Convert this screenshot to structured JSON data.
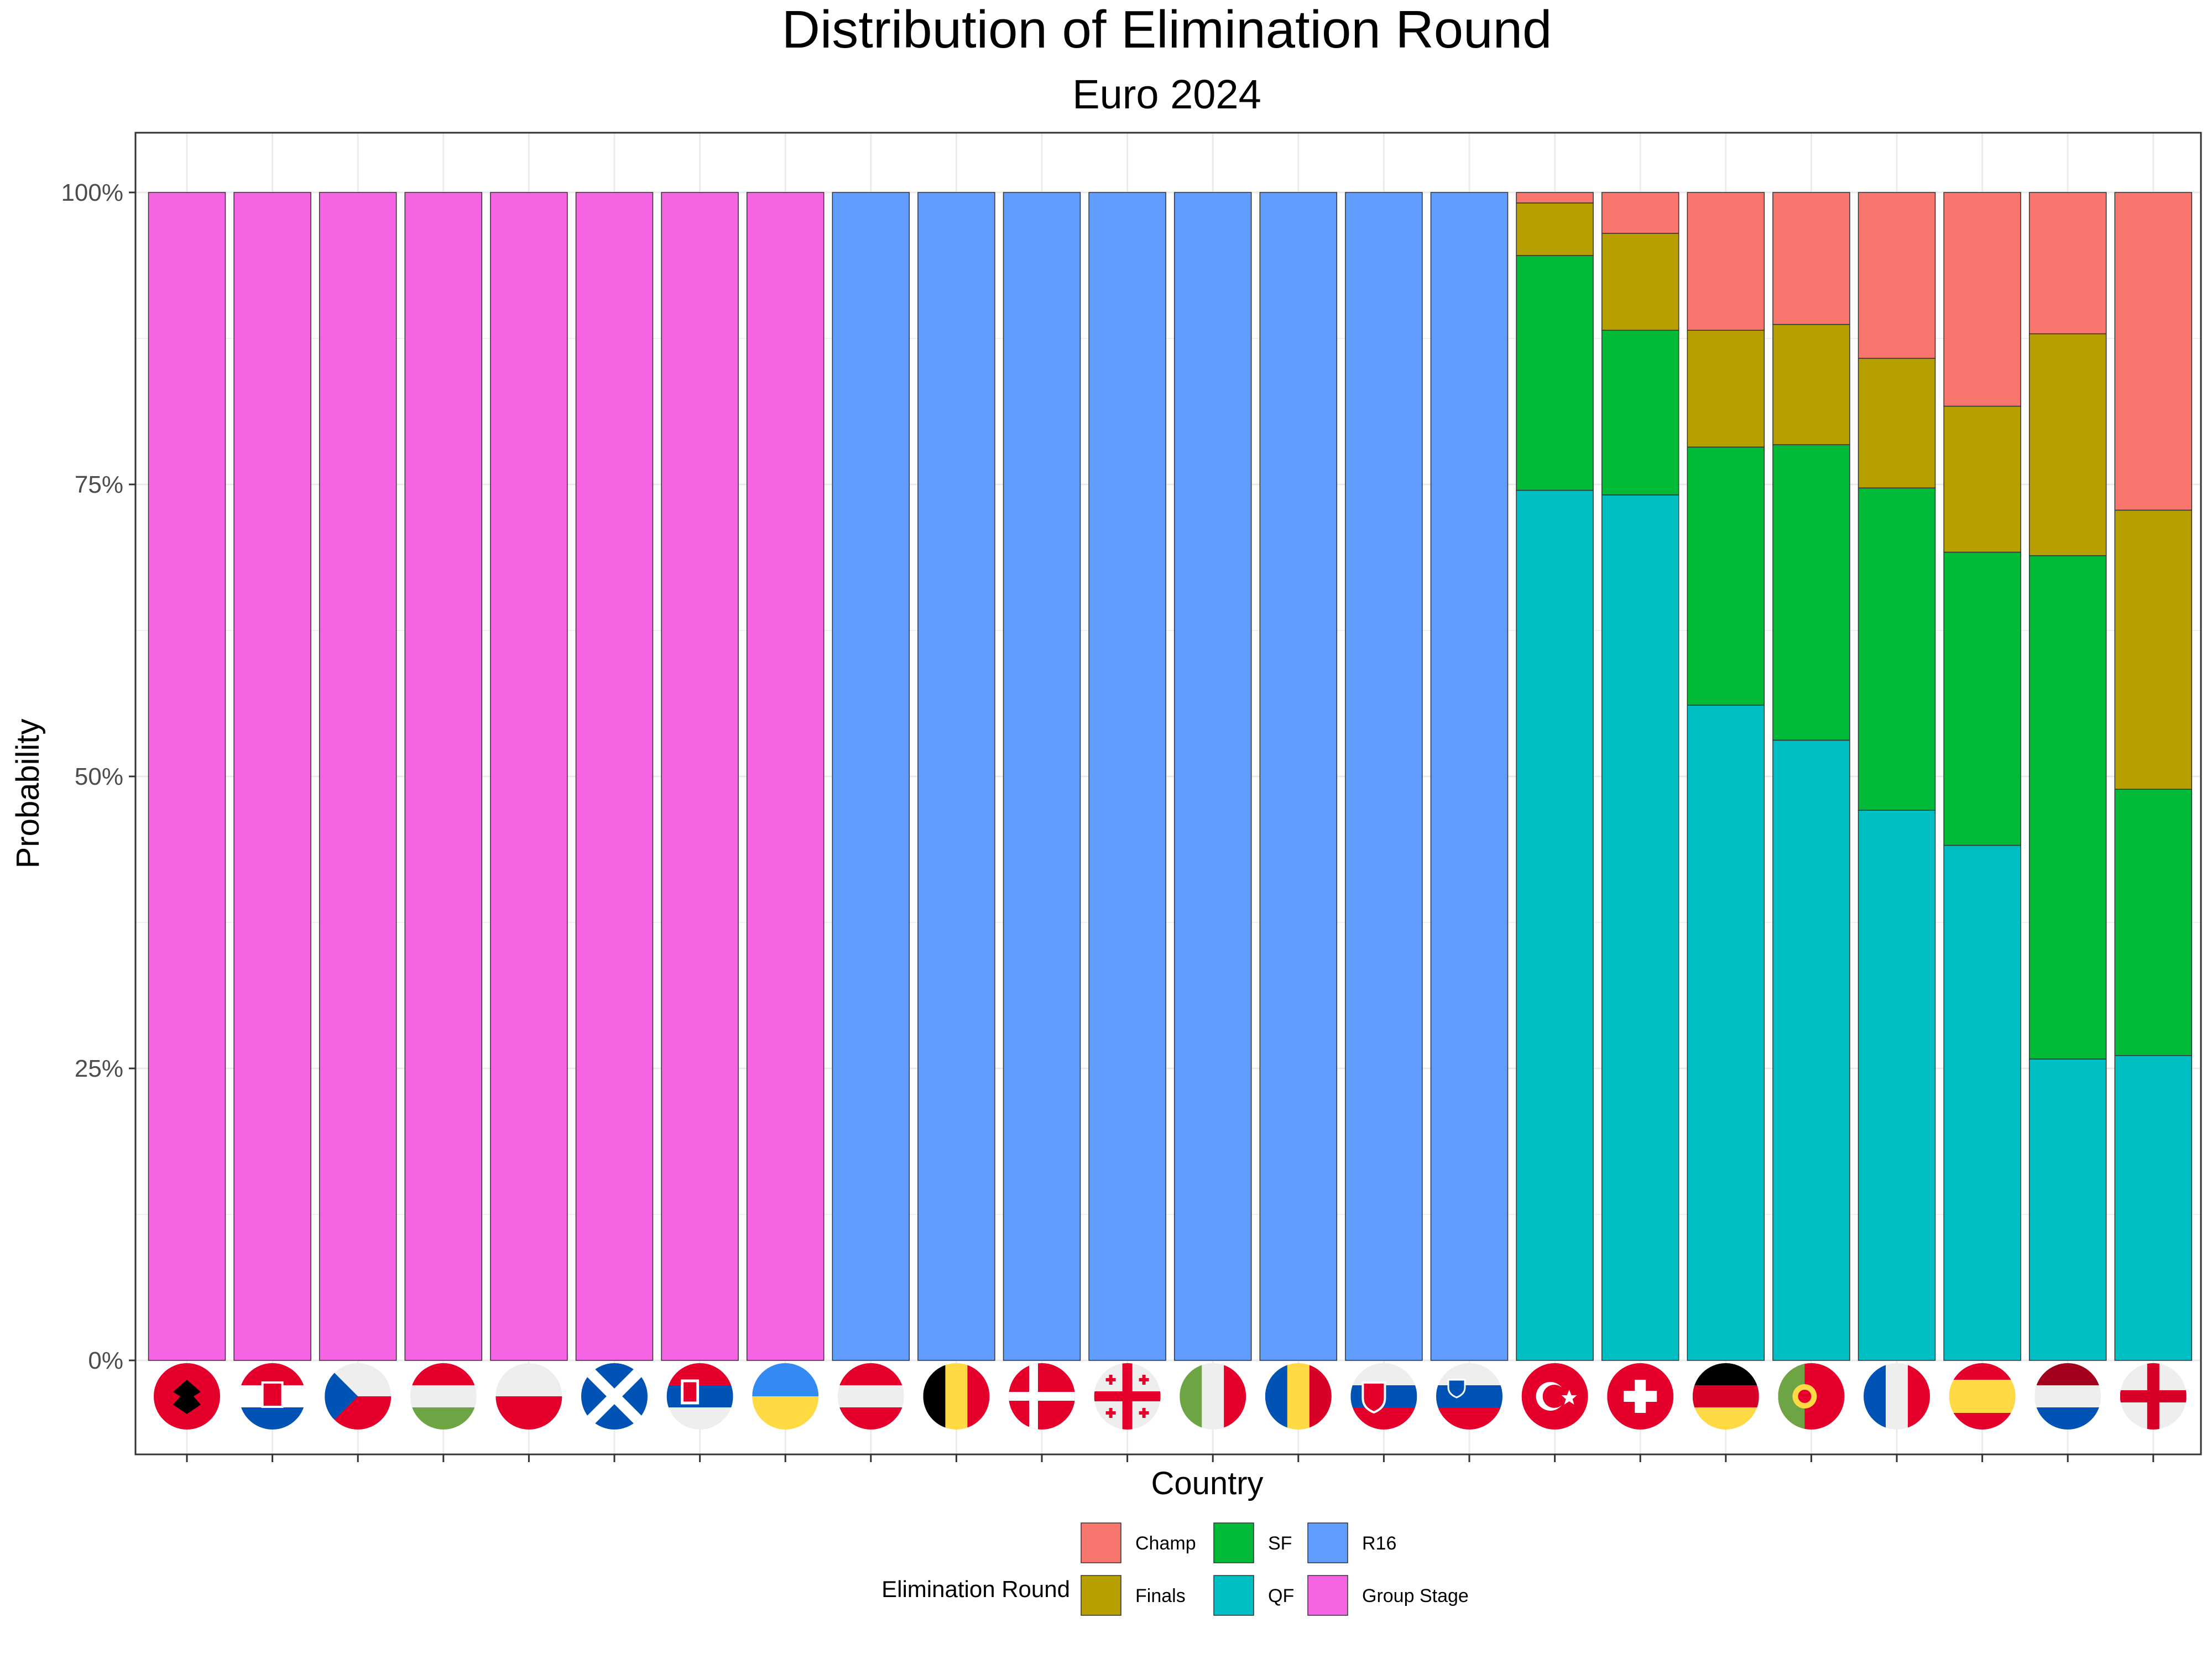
{
  "chart_data": {
    "type": "bar",
    "title": "Distribution of Elimination Round",
    "subtitle": "Euro 2024",
    "xlabel": "Country",
    "ylabel": "Probability",
    "ylim": [
      0,
      1
    ],
    "y_ticks": [
      "0%",
      "25%",
      "50%",
      "75%",
      "100%"
    ],
    "grid": true,
    "stacked": true,
    "categories": [
      "Albania",
      "Croatia",
      "Czechia",
      "Hungary",
      "Poland",
      "Scotland",
      "Serbia",
      "Ukraine",
      "Austria",
      "Belgium",
      "Denmark",
      "Georgia",
      "Italy",
      "Romania",
      "Slovakia",
      "Slovenia",
      "Turkey",
      "Switzerland",
      "Germany",
      "Portugal",
      "France",
      "Spain",
      "Netherlands",
      "England"
    ],
    "series": [
      {
        "name": "QF",
        "color": "#00BFC4",
        "values": [
          0,
          0,
          0,
          0,
          0,
          0,
          0,
          0,
          0,
          0,
          0,
          0,
          0,
          0,
          0,
          0,
          0.745,
          0.741,
          0.561,
          0.531,
          0.471,
          0.441,
          0.258,
          0.261
        ]
      },
      {
        "name": "SF",
        "color": "#00BA38",
        "values": [
          0,
          0,
          0,
          0,
          0,
          0,
          0,
          0,
          0,
          0,
          0,
          0,
          0,
          0,
          0,
          0,
          0.201,
          0.141,
          0.221,
          0.253,
          0.276,
          0.251,
          0.431,
          0.228
        ]
      },
      {
        "name": "Finals",
        "color": "#B79F00",
        "values": [
          0,
          0,
          0,
          0,
          0,
          0,
          0,
          0,
          0,
          0,
          0,
          0,
          0,
          0,
          0,
          0,
          0.045,
          0.083,
          0.1,
          0.103,
          0.111,
          0.125,
          0.19,
          0.239
        ]
      },
      {
        "name": "Champ",
        "color": "#F8766D",
        "values": [
          0,
          0,
          0,
          0,
          0,
          0,
          0,
          0,
          0,
          0,
          0,
          0,
          0,
          0,
          0,
          0,
          0.009,
          0.035,
          0.118,
          0.113,
          0.142,
          0.183,
          0.121,
          0.272
        ]
      },
      {
        "name": "R16",
        "color": "#619CFF",
        "values": [
          0,
          0,
          0,
          0,
          0,
          0,
          0,
          0,
          1,
          1,
          1,
          1,
          1,
          1,
          1,
          1,
          0,
          0,
          0,
          0,
          0,
          0,
          0,
          0
        ]
      },
      {
        "name": "Group Stage",
        "color": "#F564E3",
        "values": [
          1,
          1,
          1,
          1,
          1,
          1,
          1,
          1,
          0,
          0,
          0,
          0,
          0,
          0,
          0,
          0,
          0,
          0,
          0,
          0,
          0,
          0,
          0,
          0
        ]
      }
    ],
    "legend": {
      "title": "Elimination Round",
      "position": "bottom",
      "items": [
        {
          "label": "Champ",
          "color": "#F8766D"
        },
        {
          "label": "Finals",
          "color": "#B79F00"
        },
        {
          "label": "SF",
          "color": "#00BA38"
        },
        {
          "label": "QF",
          "color": "#00BFC4"
        },
        {
          "label": "R16",
          "color": "#619CFF"
        },
        {
          "label": "Group Stage",
          "color": "#F564E3"
        }
      ]
    },
    "flag_icons": [
      "albania-flag-icon",
      "croatia-flag-icon",
      "czechia-flag-icon",
      "hungary-flag-icon",
      "poland-flag-icon",
      "scotland-flag-icon",
      "serbia-flag-icon",
      "ukraine-flag-icon",
      "austria-flag-icon",
      "belgium-flag-icon",
      "denmark-flag-icon",
      "georgia-flag-icon",
      "italy-flag-icon",
      "romania-flag-icon",
      "slovakia-flag-icon",
      "slovenia-flag-icon",
      "turkey-flag-icon",
      "switzerland-flag-icon",
      "germany-flag-icon",
      "portugal-flag-icon",
      "france-flag-icon",
      "spain-flag-icon",
      "netherlands-flag-icon",
      "england-flag-icon"
    ]
  }
}
